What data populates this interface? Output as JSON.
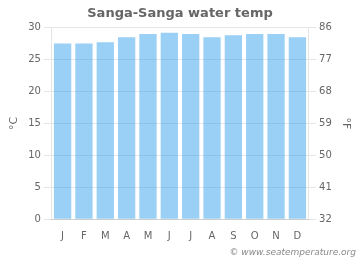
{
  "chart_data": {
    "type": "bar",
    "title": "Sanga-Sanga water temp",
    "categories": [
      "J",
      "F",
      "M",
      "A",
      "M",
      "J",
      "J",
      "A",
      "S",
      "O",
      "N",
      "D"
    ],
    "values": [
      27.5,
      27.5,
      27.7,
      28.5,
      29.0,
      29.2,
      29.0,
      28.5,
      28.8,
      29.0,
      29.0,
      28.5
    ],
    "ylabel": "°C",
    "y2label": "°F",
    "ylim": [
      0,
      30
    ],
    "yticks": [
      0,
      5,
      10,
      15,
      20,
      25,
      30
    ],
    "y2lim": [
      32,
      86
    ],
    "y2ticks": [
      32,
      41,
      50,
      59,
      68,
      77,
      86
    ],
    "grid": true,
    "annotations": [
      "© www.seatemperature.org"
    ]
  }
}
